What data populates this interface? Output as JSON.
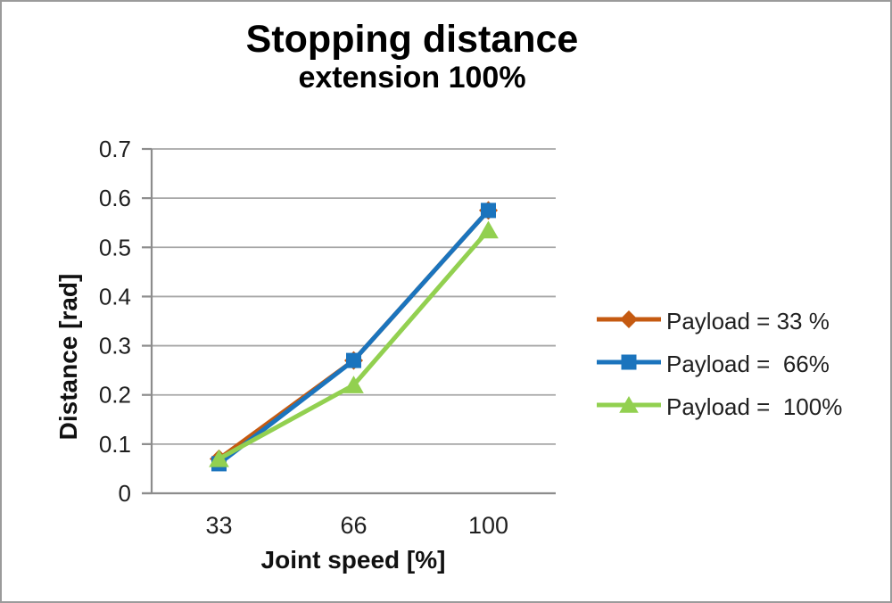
{
  "page": {
    "background": "#ffffff",
    "border_color": "#9b9b9b"
  },
  "chart_data": {
    "type": "line",
    "title": "Stopping distance",
    "subtitle": "extension 100%",
    "xlabel": "Joint speed [%]",
    "ylabel": "Distance [rad]",
    "categories": [
      "33",
      "66",
      "100"
    ],
    "yticks": [
      "0",
      "0.1",
      "0.2",
      "0.3",
      "0.4",
      "0.5",
      "0.6",
      "0.7"
    ],
    "ylim": [
      0,
      0.7
    ],
    "grid": "horizontal-only",
    "legend_position": "right-center",
    "series": [
      {
        "name": "Payload = 33 %",
        "marker": "diamond",
        "color": "#C55A11",
        "values": [
          0.07,
          0.27,
          0.575
        ]
      },
      {
        "name": "Payload =  66%",
        "marker": "square",
        "color": "#1B74BD",
        "values": [
          0.06,
          0.27,
          0.575
        ]
      },
      {
        "name": "Payload =  100%",
        "marker": "triangle",
        "color": "#92D050",
        "values": [
          0.07,
          0.22,
          0.535
        ]
      }
    ]
  },
  "colors": {
    "gridline": "#A6A6A6",
    "axis": "#8C8C8C",
    "tick_text": "#1F1F1F",
    "title_text": "#000000"
  }
}
